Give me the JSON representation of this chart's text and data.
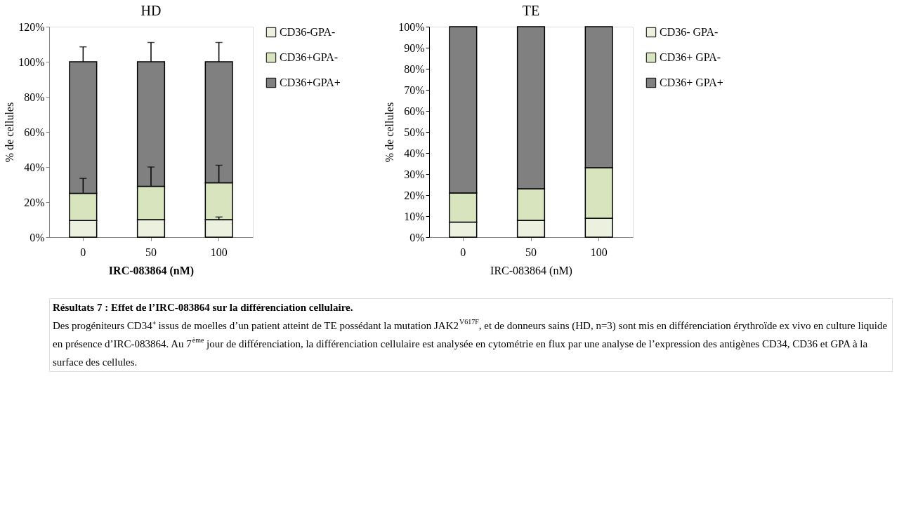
{
  "chart_data": [
    {
      "type": "bar",
      "stacked": true,
      "title": "HD",
      "xlabel": "IRC-083864 (nM)",
      "ylabel": "% de cellules",
      "categories": [
        "0",
        "50",
        "100"
      ],
      "series": [
        {
          "name": "CD36-GPA-",
          "color": "#ebf1de",
          "values": [
            9.5,
            10,
            10
          ],
          "errors": [
            null,
            null,
            1.5
          ]
        },
        {
          "name": "CD36+GPA-",
          "color": "#d7e4bd",
          "values": [
            15.5,
            19,
            21
          ],
          "errors": [
            8.5,
            11,
            10
          ]
        },
        {
          "name": "CD36+GPA+",
          "color": "#808080",
          "values": [
            75,
            71,
            69
          ],
          "errors": [
            8.5,
            11,
            11
          ]
        }
      ],
      "ylim": [
        0,
        120
      ],
      "yticks": [
        {
          "value": 0,
          "label": "0%"
        },
        {
          "value": 20,
          "label": "20%"
        },
        {
          "value": 40,
          "label": "40%"
        },
        {
          "value": 60,
          "label": "60%"
        },
        {
          "value": 80,
          "label": "80%"
        },
        {
          "value": 100,
          "label": "100%"
        },
        {
          "value": 120,
          "label": "120%"
        }
      ],
      "legend": "right",
      "grid": false
    },
    {
      "type": "bar",
      "stacked": true,
      "title": "TE",
      "xlabel": "IRC-083864 (nM)",
      "ylabel": "% de cellules",
      "categories": [
        "0",
        "50",
        "100"
      ],
      "series": [
        {
          "name": "CD36- GPA-",
          "color": "#ebf1de",
          "values": [
            7.2,
            8,
            9
          ]
        },
        {
          "name": "CD36+ GPA-",
          "color": "#d7e4bd",
          "values": [
            13.8,
            15,
            24
          ]
        },
        {
          "name": "CD36+ GPA+",
          "color": "#808080",
          "values": [
            79,
            77,
            67
          ]
        }
      ],
      "ylim": [
        0,
        100
      ],
      "yticks": [
        {
          "value": 0,
          "label": "0%"
        },
        {
          "value": 10,
          "label": "10%"
        },
        {
          "value": 20,
          "label": "20%"
        },
        {
          "value": 30,
          "label": "30%"
        },
        {
          "value": 40,
          "label": "40%"
        },
        {
          "value": 50,
          "label": "50%"
        },
        {
          "value": 60,
          "label": "60%"
        },
        {
          "value": 70,
          "label": "70%"
        },
        {
          "value": 80,
          "label": "80%"
        },
        {
          "value": 90,
          "label": "90%"
        },
        {
          "value": 100,
          "label": "100%"
        }
      ],
      "legend": "right",
      "grid": false
    },
    {
      "type": "other",
      "annotations": [
        "Résultats 7 : Effet de l’IRC-083864 sur la différenciation cellulaire.",
        "Des progéniteurs CD34⁺ issus de moelles d’un patient atteint de TE possédant la mutation JAK2$^{V617F}$, et de donneurs sains (HD, n=3) sont mis en différenciation érythroïde ex vivo en culture liquide en présence d’IRC-083864. Au 7$^{ème}$ jour de différenciation, la différenciation cellulaire est analysée en cytométrie en flux par une analyse de l’expression des antigènes CD34, CD36 et GPA à la surface des cellules."
      ]
    }
  ]
}
